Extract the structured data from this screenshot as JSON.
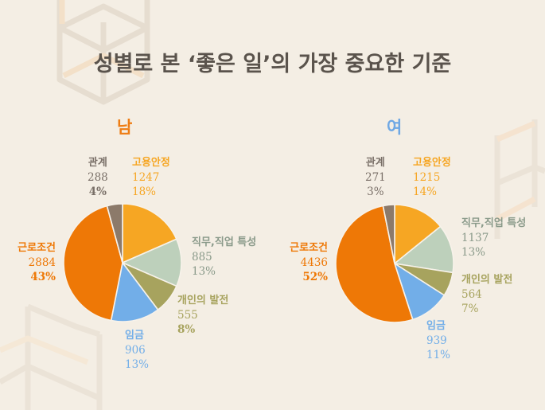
{
  "title": "성별로 본 ‘좋은 일’의 가장 중요한 기준",
  "colors": {
    "background": "#f4eee4",
    "title": "#5a534c",
    "male_heading": "#ee7d14",
    "female_heading": "#6fa8e4",
    "고용안정": "#f6a623",
    "직무,직업 특성": "#bdd0bb",
    "개인의 발전": "#a7a35e",
    "임금": "#72aee8",
    "근로조건": "#ee7806",
    "관계": "#8c7a6a"
  },
  "male": {
    "heading": "남",
    "labels": {
      "relation": {
        "name": "관계",
        "value": "288",
        "pct": "4%"
      },
      "stability": {
        "name": "고용안정",
        "value": "1247",
        "pct": "18%"
      },
      "job": {
        "name": "직무,직업 특성",
        "value": "885",
        "pct": "13%"
      },
      "growth": {
        "name": "개인의 발전",
        "value": "555",
        "pct": "8%"
      },
      "wage": {
        "name": "임금",
        "value": "906",
        "pct": "13%"
      },
      "conditions": {
        "name": "근로조건",
        "value": "2884",
        "pct": "43%"
      }
    }
  },
  "female": {
    "heading": "여",
    "labels": {
      "relation": {
        "name": "관계",
        "value": "271",
        "pct": "3%"
      },
      "stability": {
        "name": "고용안정",
        "value": "1215",
        "pct": "14%"
      },
      "job": {
        "name": "직무,직업 특성",
        "value": "1137",
        "pct": "13%"
      },
      "growth": {
        "name": "개인의 발전",
        "value": "564",
        "pct": "7%"
      },
      "wage": {
        "name": "임금",
        "value": "939",
        "pct": "11%"
      },
      "conditions": {
        "name": "근로조건",
        "value": "4436",
        "pct": "52%"
      }
    }
  },
  "chart_data": [
    {
      "type": "pie",
      "title": "남",
      "chart_title": "성별로 본 ‘좋은 일’의 가장 중요한 기준",
      "categories": [
        "고용안정",
        "직무,직업 특성",
        "개인의 발전",
        "임금",
        "근로조건",
        "관계"
      ],
      "values": [
        1247,
        885,
        555,
        906,
        2884,
        288
      ],
      "percentages": [
        18,
        13,
        8,
        13,
        43,
        4
      ],
      "start_angle": "12 o'clock",
      "direction": "clockwise",
      "colors": [
        "#f6a623",
        "#bdd0bb",
        "#a7a35e",
        "#72aee8",
        "#ee7806",
        "#8c7a6a"
      ]
    },
    {
      "type": "pie",
      "title": "여",
      "chart_title": "성별로 본 ‘좋은 일’의 가장 중요한 기준",
      "categories": [
        "고용안정",
        "직무,직업 특성",
        "개인의 발전",
        "임금",
        "근로조건",
        "관계"
      ],
      "values": [
        1215,
        1137,
        564,
        939,
        4436,
        271
      ],
      "percentages": [
        14,
        13,
        7,
        11,
        52,
        3
      ],
      "start_angle": "12 o'clock",
      "direction": "clockwise",
      "colors": [
        "#f6a623",
        "#bdd0bb",
        "#a7a35e",
        "#72aee8",
        "#ee7806",
        "#8c7a6a"
      ]
    }
  ]
}
